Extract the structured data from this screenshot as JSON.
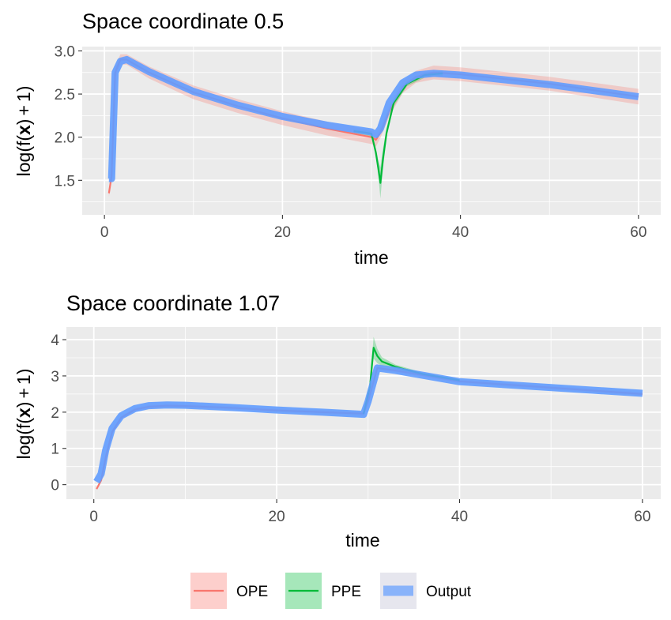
{
  "legend": {
    "position": "bottom",
    "items": [
      {
        "label": "OPE",
        "line_color": "#F8766D",
        "fill_color": "#F8766D"
      },
      {
        "label": "PPE",
        "line_color": "#00BA38",
        "fill_color": "#00BA38"
      },
      {
        "label": "Output",
        "line_color": "#619CFF",
        "fill_color": "#619CFF"
      }
    ]
  },
  "colors": {
    "panel_background": "#EBEBEB",
    "grid": "#FFFFFF",
    "ope": "#F8766D",
    "ppe": "#00BA38",
    "output": "#619CFF"
  },
  "chart_data": [
    {
      "type": "line",
      "title": "Space coordinate 0.5",
      "xlabel": "time",
      "ylabel": "log(f(x) + 1)",
      "xlim": [
        -2.5,
        62.5
      ],
      "ylim": [
        1.1,
        3.05
      ],
      "x_ticks": [
        0,
        20,
        40,
        60
      ],
      "y_ticks": [
        1.5,
        2.0,
        2.5,
        3.0
      ],
      "x_tick_labels": [
        "0",
        "20",
        "40",
        "60"
      ],
      "y_tick_labels": [
        "1.5",
        "2.0",
        "2.5",
        "3.0"
      ],
      "grid": true,
      "series": [
        {
          "name": "OPE",
          "band_halfwidth": [
            0.04,
            0.06,
            0.07,
            0.06,
            0.06,
            0.07,
            0.08,
            0.08,
            0.08,
            0.08,
            0.08,
            0.08,
            0.06,
            0.06,
            0.07,
            0.07,
            0.08,
            0.08,
            0.08,
            0.09
          ],
          "x": [
            0.5,
            0.8,
            1.2,
            1.8,
            2.5,
            5,
            10,
            15,
            20,
            25,
            30,
            30.5,
            31,
            32,
            33.5,
            35,
            37,
            40,
            50,
            60
          ],
          "y": [
            1.35,
            1.55,
            2.75,
            2.9,
            2.9,
            2.75,
            2.52,
            2.36,
            2.22,
            2.1,
            2.0,
            1.97,
            2.05,
            2.3,
            2.58,
            2.7,
            2.75,
            2.73,
            2.62,
            2.47
          ]
        },
        {
          "name": "PPE",
          "band_halfwidth": [
            0.02,
            0.03,
            0.03,
            0.03,
            0.05,
            0.1,
            0.18,
            0.12,
            0.05,
            0.04,
            0.03,
            0.03,
            0.03
          ],
          "x": [
            28,
            29.5,
            30,
            30.2,
            30.5,
            30.8,
            31.0,
            31.3,
            31.7,
            32.5,
            34,
            36,
            38
          ],
          "y": [
            2.07,
            2.05,
            2.04,
            1.95,
            1.82,
            1.62,
            1.47,
            1.75,
            2.05,
            2.4,
            2.62,
            2.72,
            2.74
          ]
        },
        {
          "name": "Output",
          "x": [
            0.5,
            0.8,
            1.2,
            1.8,
            2.5,
            5,
            10,
            15,
            20,
            25,
            30,
            30.5,
            31,
            32,
            33.5,
            35,
            37,
            40,
            50,
            60
          ],
          "y": [
            1.52,
            1.52,
            2.75,
            2.88,
            2.9,
            2.76,
            2.53,
            2.37,
            2.24,
            2.14,
            2.06,
            2.03,
            2.1,
            2.4,
            2.63,
            2.72,
            2.74,
            2.72,
            2.61,
            2.47
          ]
        }
      ]
    },
    {
      "type": "line",
      "title": "Space coordinate 1.07",
      "xlabel": "time",
      "ylabel": "log(f(x) + 1)",
      "xlim": [
        -3,
        62
      ],
      "ylim": [
        -0.4,
        4.35
      ],
      "x_ticks": [
        0,
        20,
        40,
        60
      ],
      "y_ticks": [
        0,
        1,
        2,
        3,
        4
      ],
      "x_tick_labels": [
        "0",
        "20",
        "40",
        "60"
      ],
      "y_tick_labels": [
        "0",
        "1",
        "2",
        "3",
        "4"
      ],
      "grid": true,
      "series": [
        {
          "name": "OPE",
          "band_halfwidth": [
            0.03,
            0.04,
            0.05,
            0.05,
            0.05,
            0.05,
            0.05,
            0.05,
            0.05,
            0.05,
            0.05,
            0.06,
            0.06,
            0.06,
            0.05,
            0.05,
            0.05,
            0.05
          ],
          "x": [
            0.3,
            0.8,
            1.3,
            2,
            3,
            4.5,
            6,
            8,
            10,
            15,
            20,
            25,
            29.5,
            30,
            31,
            33,
            40,
            60
          ],
          "y": [
            -0.12,
            0.12,
            0.75,
            1.45,
            1.85,
            2.07,
            2.15,
            2.18,
            2.17,
            2.12,
            2.05,
            2.0,
            1.96,
            2.3,
            3.22,
            3.15,
            2.85,
            2.5
          ]
        },
        {
          "name": "PPE",
          "band_halfwidth": [
            0.03,
            0.05,
            0.3,
            0.2,
            0.12,
            0.06,
            0.04,
            0.03
          ],
          "x": [
            29.5,
            30.2,
            30.6,
            31,
            31.5,
            33,
            36,
            40
          ],
          "y": [
            1.95,
            2.7,
            3.78,
            3.55,
            3.4,
            3.25,
            3.05,
            2.88
          ]
        },
        {
          "name": "Output",
          "x": [
            0.3,
            0.8,
            1.3,
            2,
            3,
            4.5,
            6,
            8,
            10,
            15,
            20,
            25,
            29.5,
            30,
            31,
            33,
            40,
            60
          ],
          "y": [
            0.08,
            0.3,
            0.95,
            1.55,
            1.9,
            2.1,
            2.18,
            2.2,
            2.19,
            2.13,
            2.06,
            2.0,
            1.94,
            2.3,
            3.22,
            3.15,
            2.84,
            2.52
          ]
        }
      ]
    }
  ]
}
